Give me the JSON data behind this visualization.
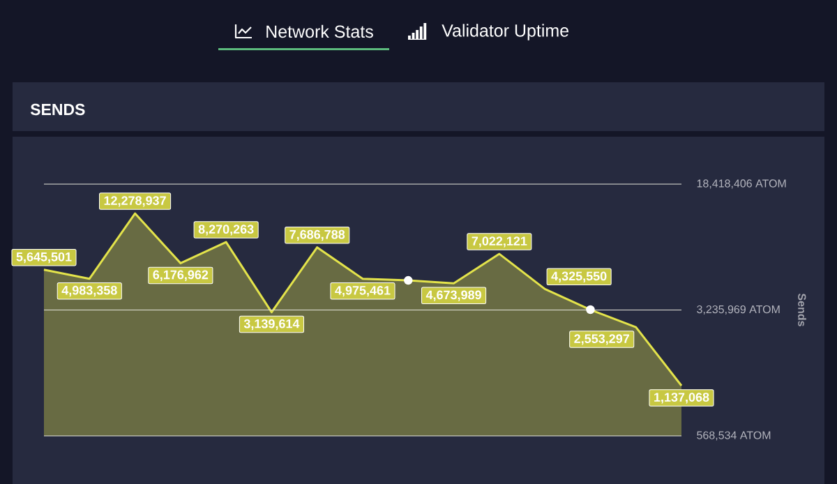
{
  "chart_data": {
    "type": "area",
    "title": "SENDS",
    "ylabel": "Sends",
    "annotations": [
      "Network Stats",
      "Validator Uptime"
    ],
    "categories": [
      null,
      null,
      null,
      null,
      null,
      null,
      null,
      null,
      null,
      null,
      null,
      null,
      null,
      null,
      null
    ],
    "series": [
      {
        "color": "#e3e34b",
        "values": [
          5645501,
          4983358,
          12278937,
          6176962,
          8270263,
          3139614,
          7686788,
          4975461,
          4870000,
          4673989,
          7022121,
          4325550,
          3250000,
          2553297,
          1137068
        ],
        "value_labels": [
          "5,645,501",
          "4,983,358",
          "12,278,937",
          "6,176,962",
          "8,270,263",
          "3,139,614",
          "7,686,788",
          "4,975,461",
          null,
          "4,673,989",
          "7,022,121",
          "4,325,550",
          null,
          "2,553,297",
          "1,137,068"
        ]
      },
      {
        "type": "scatter",
        "color": "#ffffff",
        "marker": "circle",
        "values": [
          null,
          null,
          null,
          null,
          null,
          null,
          null,
          null,
          4870000,
          null,
          null,
          null,
          3250000,
          null,
          null
        ]
      }
    ],
    "log": "y",
    "ylim": [
      568534,
      18418406
    ],
    "yticks": [
      {
        "value": 568534,
        "label": "568,534 ATOM"
      },
      {
        "value": 3235969,
        "label": "3,235,969 ATOM"
      },
      {
        "value": 18418406,
        "label": "18,418,406 ATOM"
      }
    ],
    "grid": "y"
  }
}
